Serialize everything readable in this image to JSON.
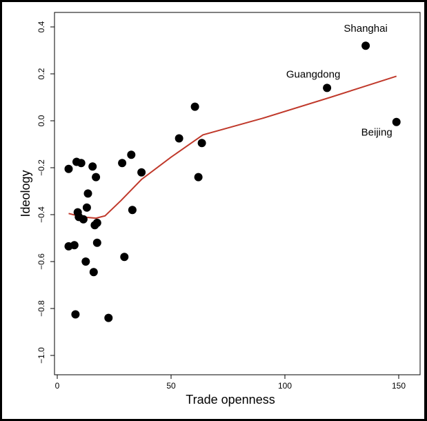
{
  "chart_data": {
    "type": "scatter",
    "xlabel": "Trade openness",
    "ylabel": "Ideology",
    "xlim": [
      0,
      150
    ],
    "ylim": [
      -1.0,
      0.4
    ],
    "x_ticks": [
      0,
      50,
      100,
      150
    ],
    "y_ticks": [
      -1.0,
      -0.8,
      -0.6,
      -0.4,
      -0.2,
      0.0,
      0.2,
      0.4
    ],
    "x_tick_labels": [
      "0",
      "50",
      "100",
      "150"
    ],
    "y_tick_labels": [
      "−1.0",
      "−0.8",
      "−0.6",
      "−0.4",
      "−0.2",
      "0.0",
      "0.2",
      "0.4"
    ],
    "grid": false,
    "points": [
      {
        "x": 135.5,
        "y": 0.32
      },
      {
        "x": 118.5,
        "y": 0.14
      },
      {
        "x": 149.0,
        "y": -0.005
      },
      {
        "x": 60.5,
        "y": 0.06
      },
      {
        "x": 53.5,
        "y": -0.075
      },
      {
        "x": 63.5,
        "y": -0.095
      },
      {
        "x": 62.0,
        "y": -0.24
      },
      {
        "x": 32.5,
        "y": -0.145
      },
      {
        "x": 28.5,
        "y": -0.18
      },
      {
        "x": 37.0,
        "y": -0.22
      },
      {
        "x": 33.0,
        "y": -0.38
      },
      {
        "x": 29.5,
        "y": -0.58
      },
      {
        "x": 22.5,
        "y": -0.84
      },
      {
        "x": 5.0,
        "y": -0.205
      },
      {
        "x": 8.5,
        "y": -0.175
      },
      {
        "x": 10.5,
        "y": -0.18
      },
      {
        "x": 15.5,
        "y": -0.195
      },
      {
        "x": 17.0,
        "y": -0.24
      },
      {
        "x": 13.5,
        "y": -0.31
      },
      {
        "x": 13.0,
        "y": -0.37
      },
      {
        "x": 9.0,
        "y": -0.39
      },
      {
        "x": 9.5,
        "y": -0.41
      },
      {
        "x": 11.5,
        "y": -0.42
      },
      {
        "x": 17.5,
        "y": -0.435
      },
      {
        "x": 16.5,
        "y": -0.445
      },
      {
        "x": 17.5,
        "y": -0.52
      },
      {
        "x": 5.0,
        "y": -0.535
      },
      {
        "x": 7.5,
        "y": -0.53
      },
      {
        "x": 12.5,
        "y": -0.6
      },
      {
        "x": 16.0,
        "y": -0.645
      },
      {
        "x": 8.0,
        "y": -0.825
      }
    ],
    "fit_line": {
      "color": "#c0392b",
      "points": [
        {
          "x": 5,
          "y": -0.395
        },
        {
          "x": 11,
          "y": -0.41
        },
        {
          "x": 17,
          "y": -0.415
        },
        {
          "x": 21,
          "y": -0.405
        },
        {
          "x": 28,
          "y": -0.34
        },
        {
          "x": 37,
          "y": -0.25
        },
        {
          "x": 50,
          "y": -0.155
        },
        {
          "x": 64,
          "y": -0.06
        },
        {
          "x": 90,
          "y": 0.01
        },
        {
          "x": 120,
          "y": 0.1
        },
        {
          "x": 149,
          "y": 0.19
        }
      ]
    },
    "annotations": [
      {
        "text": "Shanghai",
        "x": 135.5,
        "y": 0.32
      },
      {
        "text": "Guangdong",
        "x": 118.5,
        "y": 0.14
      },
      {
        "text": "Beijing",
        "x": 149.0,
        "y": -0.005
      }
    ],
    "point_color": "#000000"
  }
}
